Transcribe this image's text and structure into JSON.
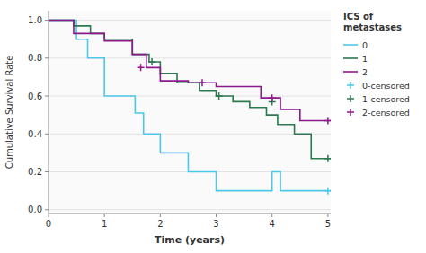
{
  "chart_data": {
    "type": "step",
    "xlabel": "Time (years)",
    "ylabel": "Cumulative Survival Rate",
    "legend_title": "ICS of\nmetastases",
    "legend": "upper right",
    "grid": "y",
    "xlim": [
      0,
      5.05
    ],
    "ylim": [
      -0.02,
      1.05
    ],
    "xticks": [
      0,
      1,
      2,
      3,
      4,
      5
    ],
    "yticks": [
      {
        "value": 0.0,
        "label": "0.0"
      },
      0.2,
      0.4,
      0.6,
      0.8,
      {
        "value": 1.0,
        "label": "1.0"
      }
    ],
    "series": [
      {
        "name": "0",
        "type": "step",
        "color": "#4dc8e8",
        "x": [
          0,
          0.5,
          0.5,
          0.7,
          0.7,
          1.0,
          1.0,
          1.55,
          1.55,
          1.7,
          1.7,
          2.0,
          2.0,
          2.5,
          2.5,
          3.0,
          3.0,
          3.35,
          3.35,
          4.0,
          4.0,
          4.15,
          4.15,
          5.05
        ],
        "values": [
          1.0,
          1.0,
          0.9,
          0.9,
          0.8,
          0.8,
          0.6,
          0.6,
          0.51,
          0.51,
          0.4,
          0.4,
          0.3,
          0.3,
          0.2,
          0.2,
          0.1,
          0.1,
          0.1,
          0.1,
          0.2,
          0.2,
          0.1,
          0.1
        ]
      },
      {
        "name": "1",
        "type": "step",
        "color": "#2a7a50",
        "x": [
          0,
          0.45,
          0.45,
          0.75,
          0.75,
          1.0,
          1.0,
          1.5,
          1.5,
          1.8,
          1.8,
          2.0,
          2.0,
          2.3,
          2.3,
          2.7,
          2.7,
          3.0,
          3.0,
          3.3,
          3.3,
          3.6,
          3.6,
          3.9,
          3.9,
          4.1,
          4.1,
          4.4,
          4.4,
          4.7,
          4.7,
          5.05
        ],
        "values": [
          1.0,
          1.0,
          0.97,
          0.97,
          0.93,
          0.93,
          0.9,
          0.9,
          0.82,
          0.82,
          0.78,
          0.78,
          0.72,
          0.72,
          0.67,
          0.67,
          0.63,
          0.63,
          0.6,
          0.6,
          0.57,
          0.57,
          0.54,
          0.54,
          0.5,
          0.5,
          0.45,
          0.45,
          0.4,
          0.4,
          0.27,
          0.27
        ]
      },
      {
        "name": "2",
        "type": "step",
        "color": "#8b1a8b",
        "x": [
          0,
          0.45,
          0.45,
          1.0,
          1.0,
          1.5,
          1.5,
          1.75,
          1.75,
          2.0,
          2.0,
          2.5,
          2.5,
          3.0,
          3.0,
          3.8,
          3.8,
          4.15,
          4.15,
          4.5,
          4.5,
          5.05
        ],
        "values": [
          1.0,
          1.0,
          0.93,
          0.93,
          0.89,
          0.89,
          0.82,
          0.82,
          0.75,
          0.75,
          0.68,
          0.68,
          0.67,
          0.67,
          0.65,
          0.65,
          0.59,
          0.59,
          0.53,
          0.53,
          0.47,
          0.47
        ]
      },
      {
        "name": "0-censored",
        "type": "scatter",
        "marker": "plus",
        "color": "#4dc8e8",
        "x": [
          5.0
        ],
        "values": [
          0.1
        ]
      },
      {
        "name": "1-censored",
        "type": "scatter",
        "marker": "plus",
        "color": "#2a7a50",
        "x": [
          1.85,
          3.05,
          4.0,
          5.0
        ],
        "values": [
          0.78,
          0.6,
          0.57,
          0.27
        ]
      },
      {
        "name": "2-censored",
        "type": "scatter",
        "marker": "plus",
        "color": "#8b1a8b",
        "x": [
          1.65,
          2.75,
          4.0,
          5.0
        ],
        "values": [
          0.75,
          0.67,
          0.59,
          0.47
        ]
      }
    ]
  }
}
